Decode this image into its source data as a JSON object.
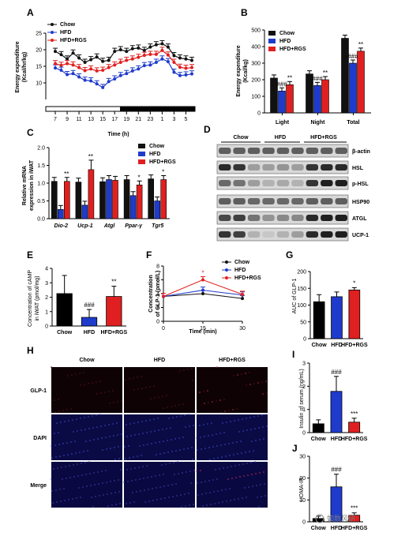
{
  "colors": {
    "chow": "#111111",
    "hfd": "#1f3bcc",
    "rgs": "#e02020",
    "dark": "#1a1a1a"
  },
  "panels": [
    "A",
    "B",
    "C",
    "D",
    "E",
    "F",
    "G",
    "H",
    "I",
    "J"
  ],
  "legend_main": [
    "Chow",
    "HFD",
    "HFD+RGS"
  ],
  "chart_data": [
    {
      "id": "A",
      "type": "line",
      "ylabel": "Energy expenditure\n(Kcal/hr/kg)",
      "xlabel": "Time (h)",
      "x_ticks": [
        "7",
        "9",
        "11",
        "13",
        "15",
        "17",
        "19",
        "21",
        "23",
        "1",
        "3",
        "5"
      ],
      "y_ticks": [
        10,
        15,
        20,
        25
      ],
      "ylim": [
        5,
        25
      ],
      "light_dark_bar": "light 7-19 h, dark 19-7 h",
      "series": [
        {
          "name": "Chow",
          "values": [
            19.5,
            18.5,
            17.2,
            19,
            17.5,
            16.2,
            17,
            17.8,
            16.5,
            16.8,
            19.5,
            20,
            19.5,
            20.3,
            20.5,
            19.8,
            20.8,
            21.5,
            21.8,
            20.8,
            18.2,
            17.5,
            17.2,
            16.8
          ]
        },
        {
          "name": "HFD",
          "values": [
            14.5,
            13.8,
            12.5,
            12.8,
            11.8,
            10.8,
            10.6,
            9.7,
            8.6,
            10.4,
            11.2,
            12.2,
            12.8,
            13.6,
            14.2,
            15.2,
            15.4,
            16.2,
            17.2,
            16.4,
            13.2,
            12.2,
            12.4,
            12.7
          ]
        },
        {
          "name": "HFD+RGS",
          "values": [
            15.8,
            15.3,
            15.8,
            15.4,
            14.6,
            13.7,
            14.2,
            13.6,
            13.8,
            14.6,
            15.4,
            16.2,
            16.8,
            17.2,
            17.7,
            18.3,
            18.6,
            18.6,
            19.8,
            18.4,
            16.2,
            14.7,
            14.4,
            14.6
          ]
        }
      ]
    },
    {
      "id": "B",
      "type": "bar",
      "ylabel": "Energy expenditure\n(Kcal/kg)",
      "categories": [
        "Light",
        "Night",
        "Total"
      ],
      "ylim": [
        0,
        500
      ],
      "y_ticks": [
        0,
        100,
        200,
        300,
        400,
        500
      ],
      "series": [
        {
          "name": "Chow",
          "values": [
            210,
            235,
            450
          ]
        },
        {
          "name": "HFD",
          "values": [
            132,
            165,
            300
          ]
        },
        {
          "name": "HFD+RGS",
          "values": [
            170,
            200,
            372
          ]
        }
      ],
      "annotations": [
        [
          "",
          "###",
          "**"
        ],
        [
          "",
          "###",
          "**"
        ],
        [
          "",
          "###",
          "**"
        ]
      ]
    },
    {
      "id": "C",
      "type": "bar",
      "ylabel": "Relative mRNA\nexpression in iWAT",
      "categories": [
        "Dio-2",
        "Ucp-1",
        "Atgl",
        "Ppar-γ",
        "Tgr5"
      ],
      "ylim": [
        0,
        2.0
      ],
      "y_ticks": [
        "0.0",
        "0.5",
        "1.0",
        "1.5",
        "2.0"
      ],
      "series": [
        {
          "name": "Chow",
          "values": [
            1.05,
            1.03,
            1.04,
            1.1,
            1.12
          ]
        },
        {
          "name": "HFD",
          "values": [
            0.26,
            0.38,
            1.1,
            0.65,
            0.5
          ]
        },
        {
          "name": "HFD+RGS",
          "values": [
            1.05,
            1.38,
            1.08,
            0.95,
            1.1
          ]
        }
      ],
      "annotations": [
        "**",
        "**",
        "",
        "*",
        "*"
      ]
    },
    {
      "id": "E",
      "type": "bar",
      "ylabel": "Concentration of cAMP\nin iWAT (pmol/mg)",
      "categories": [
        "Chow",
        "HFD",
        "HFD+RGS"
      ],
      "values": [
        2.25,
        0.6,
        2.05
      ],
      "ylim": [
        0,
        4
      ],
      "y_ticks": [
        0,
        1,
        2,
        3,
        4
      ],
      "annotations": [
        "",
        "###",
        "**"
      ]
    },
    {
      "id": "F",
      "type": "line",
      "ylabel": "Concentration\nof GLP-1 (pmol/L)",
      "xlabel": "Time (min)",
      "x": [
        0,
        15,
        30
      ],
      "x_ticks": [
        0,
        15,
        30
      ],
      "ylim": [
        0,
        8
      ],
      "y_ticks": [
        0,
        2,
        4,
        6,
        8
      ],
      "series": [
        {
          "name": "Chow",
          "values": [
            3.6,
            4.0,
            3.3
          ]
        },
        {
          "name": "HFD",
          "values": [
            3.6,
            4.5,
            3.8
          ]
        },
        {
          "name": "HFD+RGS",
          "values": [
            3.6,
            6.0,
            3.9
          ]
        }
      ],
      "annotations": [
        "",
        "*",
        ""
      ]
    },
    {
      "id": "G",
      "type": "bar",
      "ylabel": "AUC of GLP-1",
      "categories": [
        "Chow",
        "HFD",
        "HFD+RGS"
      ],
      "values": [
        110,
        125,
        145
      ],
      "ylim": [
        0,
        200
      ],
      "y_ticks": [
        0,
        50,
        100,
        150,
        200
      ],
      "annotations": [
        "",
        "",
        "*"
      ]
    },
    {
      "id": "I",
      "type": "bar",
      "ylabel": "Insulin of serum (ng/mL)",
      "categories": [
        "Chow",
        "HFD",
        "HFD+RGS"
      ],
      "values": [
        0.38,
        1.78,
        0.45
      ],
      "ylim": [
        0,
        3
      ],
      "y_ticks": [
        0,
        1,
        2,
        3
      ],
      "annotations": [
        "",
        "###",
        "***"
      ]
    },
    {
      "id": "J",
      "type": "bar",
      "ylabel": "HOMA-IR",
      "categories": [
        "Chow",
        "HFD",
        "HFD+RGS"
      ],
      "values": [
        1.5,
        16,
        3
      ],
      "ylim": [
        0,
        30
      ],
      "y_ticks": [
        0,
        10,
        20,
        30
      ],
      "annotations": [
        "",
        "###",
        "***"
      ]
    }
  ],
  "blot": {
    "groups": [
      "Chow",
      "HFD",
      "HFD+RGS"
    ],
    "labels": [
      "β-actin",
      "HSL",
      "p-HSL",
      "HSP90",
      "ATGL",
      "UCP-1"
    ]
  },
  "micro": {
    "cols": [
      "Chow",
      "HFD",
      "HFD+RGS"
    ],
    "rows": [
      "GLP-1",
      "DAPI",
      "Merge"
    ]
  },
  "watermark": "如数风研"
}
